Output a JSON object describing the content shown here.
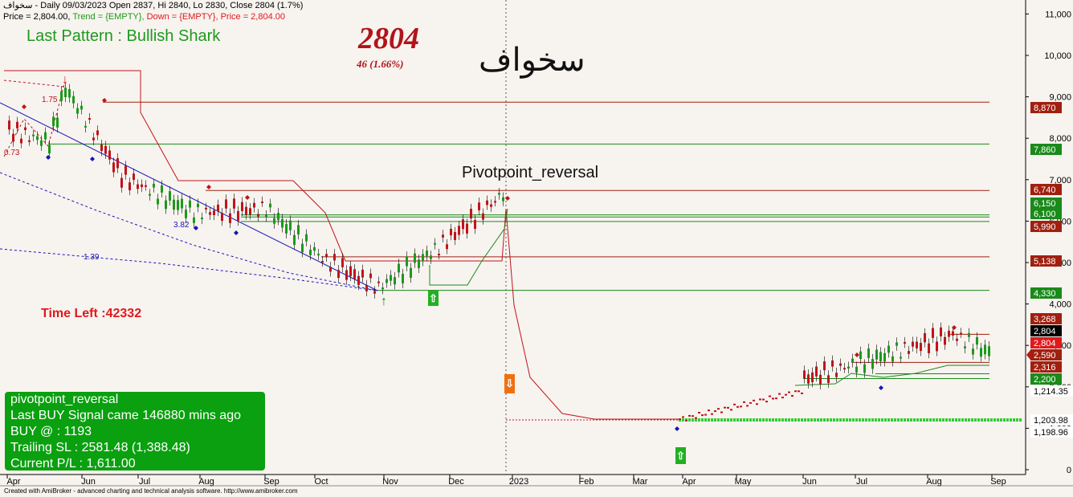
{
  "header": {
    "line1": "سخواف - Daily 09/03/2023 Open 2837, Hi 2840, Lo 2830, Close 2804 (1.7%)",
    "line2_price": "Price = 2,804.00, ",
    "line2_trend": "Trend = {EMPTY}, ",
    "line2_down": "Down = {EMPTY}, ",
    "line2_price2": "Price = 2,804.00"
  },
  "overlay": {
    "pattern": "Last Pattern : Bullish Shark",
    "big_price": "2804",
    "change": "46  (1.66%)",
    "symbol": "سخواف",
    "pivot_title": "Pivotpoint_reversal",
    "time_left": "Time Left :42332"
  },
  "signal_box": {
    "title": "pivotpoint_reversal",
    "line1": "Last BUY Signal came 146880 mins ago",
    "line2": "BUY @   : 1193",
    "line3": "Trailing SL : 2581.48 (1,388.48)",
    "line4": "Current P/L : 1,611.00"
  },
  "footer": {
    "credit": "Created with AmiBroker - advanced charting and technical analysis software. http://www.amibroker.com"
  },
  "colors": {
    "background": "#f7f3ef",
    "up": "#1a9a1a",
    "down": "#c0141a",
    "trend_line": "#1616b8",
    "resistance": "#a02010",
    "support": "#1a8a1a"
  },
  "chart_data": {
    "type": "candlestick",
    "title": "سخواف",
    "xlabel": "",
    "ylabel": "",
    "x_tick_labels": [
      "Apr",
      "Jun",
      "Jul",
      "Aug",
      "Sep",
      "Oct",
      "Nov",
      "Dec",
      "2023",
      "Feb",
      "Mar",
      "Apr",
      "May",
      "Jun",
      "Jul",
      "Aug",
      "Sep"
    ],
    "y_ticks": [
      0,
      1000,
      2000,
      3000,
      4000,
      5000,
      6000,
      7000,
      8000,
      9000,
      10000,
      11000
    ],
    "y_tick_labels": [
      "0",
      "1,000",
      "2,000",
      "3,000",
      "4,000",
      "5,000",
      "6,000",
      "7,000",
      "8,000",
      "9,000",
      "10,000",
      "11,000"
    ],
    "ylim": [
      0,
      11700
    ],
    "grid": false,
    "last_close": 2804,
    "price_path": [
      {
        "x": "Apr",
        "price": 8200
      },
      {
        "x": "May",
        "price": 7900
      },
      {
        "x": "Jun",
        "price": 9200
      },
      {
        "x": "Jul",
        "price": 7100
      },
      {
        "x": "Aug",
        "price": 6200
      },
      {
        "x": "Sep",
        "price": 6300
      },
      {
        "x": "Oct",
        "price": 5100
      },
      {
        "x": "Nov",
        "price": 4400
      },
      {
        "x": "Dec",
        "price": 5300
      },
      {
        "x": "2023",
        "price": 6740
      },
      {
        "x": "Jun",
        "price": 2200
      },
      {
        "x": "Jul",
        "price": 2590
      },
      {
        "x": "Aug",
        "price": 3268
      },
      {
        "x": "Sep",
        "price": 2804
      }
    ],
    "horizontal_levels": [
      {
        "value": 8870,
        "label": "8,870",
        "color": "#a02010"
      },
      {
        "value": 7860,
        "label": "7,860",
        "color": "#1a8a1a"
      },
      {
        "value": 6740,
        "label": "6,740",
        "color": "#a02010"
      },
      {
        "value": 6150,
        "label": "6,150",
        "color": "#1a8a1a"
      },
      {
        "value": 6100,
        "label": "6,100",
        "color": "#1a8a1a"
      },
      {
        "value": 5990,
        "label": "5,990",
        "color": "#a02010"
      },
      {
        "value": 5138,
        "label": "5,138",
        "color": "#a02010"
      },
      {
        "value": 4330,
        "label": "4,330",
        "color": "#1a8a1a"
      },
      {
        "value": 3268,
        "label": "3,268",
        "color": "#a02010"
      },
      {
        "value": 2804,
        "label": "2,804",
        "color": "#000000"
      },
      {
        "value": 2804,
        "label": "2,804",
        "color": "#e0191b"
      },
      {
        "value": 2590,
        "label": "2,590",
        "color": "#a02010"
      },
      {
        "value": 2316,
        "label": "2,316",
        "color": "#a02010"
      },
      {
        "value": 2200,
        "label": "2,200",
        "color": "#1a8a1a"
      },
      {
        "value": 1214.35,
        "label": "1,214.35",
        "color": "#1a8a1a"
      },
      {
        "value": 1203.98,
        "label": "1,203.98",
        "color": "#1a8a1a"
      },
      {
        "value": 1198.96,
        "label": "1,198.96",
        "color": "#1a8a1a"
      }
    ],
    "pattern_labels": [
      "1.75",
      "0.73",
      "3.82",
      "1.39"
    ]
  }
}
